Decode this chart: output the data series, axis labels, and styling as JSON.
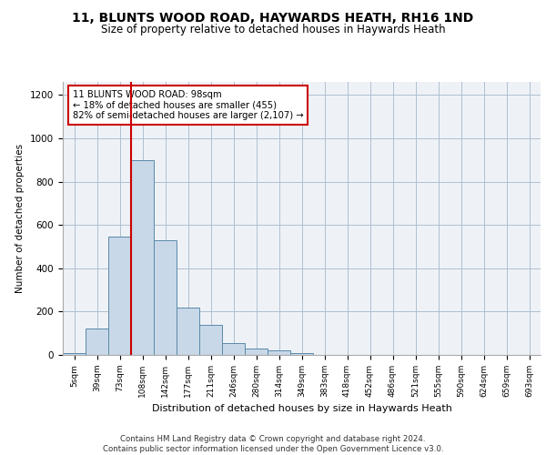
{
  "title": "11, BLUNTS WOOD ROAD, HAYWARDS HEATH, RH16 1ND",
  "subtitle": "Size of property relative to detached houses in Haywards Heath",
  "xlabel": "Distribution of detached houses by size in Haywards Heath",
  "ylabel": "Number of detached properties",
  "bin_labels": [
    "5sqm",
    "39sqm",
    "73sqm",
    "108sqm",
    "142sqm",
    "177sqm",
    "211sqm",
    "246sqm",
    "280sqm",
    "314sqm",
    "349sqm",
    "383sqm",
    "418sqm",
    "452sqm",
    "486sqm",
    "521sqm",
    "555sqm",
    "590sqm",
    "624sqm",
    "659sqm",
    "693sqm"
  ],
  "bar_values": [
    10,
    120,
    545,
    900,
    530,
    220,
    140,
    55,
    30,
    20,
    10,
    0,
    0,
    0,
    0,
    0,
    0,
    0,
    0,
    0,
    0
  ],
  "bar_color": "#c8d8e8",
  "bar_edge_color": "#5a8aaa",
  "vline_x": 2.5,
  "annotation_text": "11 BLUNTS WOOD ROAD: 98sqm\n← 18% of detached houses are smaller (455)\n82% of semi-detached houses are larger (2,107) →",
  "annotation_box_color": "#ffffff",
  "annotation_box_edge": "#cc0000",
  "vline_color": "#cc0000",
  "ylim": [
    0,
    1260
  ],
  "yticks": [
    0,
    200,
    400,
    600,
    800,
    1000,
    1200
  ],
  "footer": "Contains HM Land Registry data © Crown copyright and database right 2024.\nContains public sector information licensed under the Open Government Licence v3.0.",
  "bg_color": "#eef2f7",
  "grid_color": "#b0bfcf"
}
